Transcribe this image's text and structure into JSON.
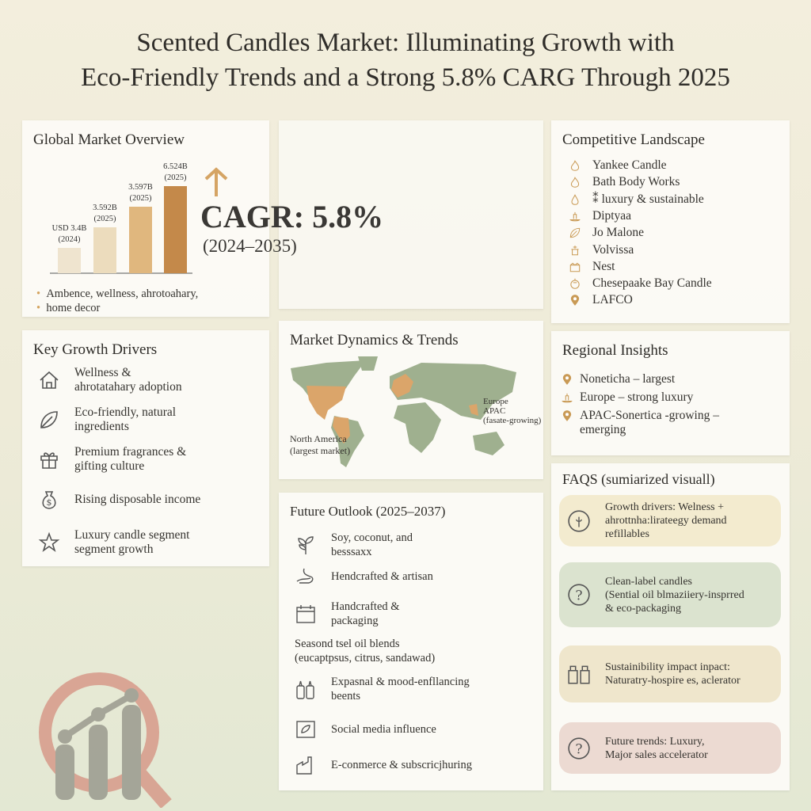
{
  "title_line1": "Scented Candles Market: Illuminating Growth with",
  "title_line2": "Eco-Friendly Trends and a Strong 5.8% CARG Through 2025",
  "overview": {
    "title": "Global Market Overview",
    "bullets": [
      "Ambence, wellness, ahrotoahary,",
      "home decor"
    ],
    "cagr_label": "CAGR: 5.8%",
    "cagr_period": "(2024–2035)",
    "arrow_icon": "arrow-up-icon"
  },
  "chart_data": {
    "type": "bar",
    "categories": [
      "2024",
      "2025",
      "2025",
      "2025"
    ],
    "value_labels": [
      "USD 3.4B",
      "3.592B",
      "3.597B",
      "6.524B"
    ],
    "year_labels": [
      "(2024)",
      "(2025)",
      "(2025)",
      "(2025)"
    ],
    "values": [
      3.4,
      3.592,
      3.597,
      6.524
    ],
    "colors": [
      "#efe4cf",
      "#ecdcbd",
      "#e0b77e",
      "#c4894a"
    ],
    "title": "",
    "xlabel": "",
    "ylabel": ""
  },
  "drivers": {
    "title": "Key Growth Drivers",
    "items": [
      {
        "icon": "house-icon",
        "l1": "Wellness &",
        "l2": "ahrotatahary adoption"
      },
      {
        "icon": "leaf-icon",
        "l1": "Eco-friendly, natural",
        "l2": "ingredients"
      },
      {
        "icon": "gift-icon",
        "l1": "Premium fragrances &",
        "l2": "gifting culture"
      },
      {
        "icon": "money-bag-icon",
        "l1": "Rising disposable income",
        "l2": ""
      },
      {
        "icon": "star-icon",
        "l1": "Luxury candle segment",
        "l2": "segment growth"
      }
    ]
  },
  "dynamics": {
    "title": "Market Dynamics & Trends",
    "na_label": "North America",
    "na_sub": "(largest market)",
    "ap1": "Europe",
    "ap2": "APAC",
    "ap3": "(fasate-growing)",
    "land_color": "#9fb08f",
    "highlight_color": "#dba56a"
  },
  "outlook": {
    "title": "Future Outlook (2025–2037)",
    "items": [
      {
        "icon": "sprout-icon",
        "l1": "Soy, coconut, and",
        "l2": "besssaxx"
      },
      {
        "icon": "hand-icon",
        "l1": "Hendcrafted & artisan",
        "l2": ""
      },
      {
        "icon": "calendar-icon",
        "l1": "Handcrafted &",
        "l2": "packaging"
      },
      {
        "icon": "",
        "l1": "Seasond tsel oil blends",
        "l2": "(eucaptpsus, citrus, sandawad)"
      },
      {
        "icon": "bottles-icon",
        "l1": "Expasnal & mood-enfllancing",
        "l2": "beents"
      },
      {
        "icon": "social-media-icon",
        "l1": "Social media influence",
        "l2": ""
      },
      {
        "icon": "store-icon",
        "l1": "E-conmerce & subscricjhuring",
        "l2": ""
      }
    ]
  },
  "competitive": {
    "title": "Competitive Landscape",
    "items": [
      {
        "icon": "flame-icon",
        "label": "Yankee Candle"
      },
      {
        "icon": "flame-icon",
        "label": "Bath Body Works"
      },
      {
        "icon": "drop-icon",
        "label": "⁑ luxury & sustainable"
      },
      {
        "icon": "candle-icon",
        "label": "Diptyaa"
      },
      {
        "icon": "leaf-icon",
        "label": "Jo Malone"
      },
      {
        "icon": "jar-icon",
        "label": "Volvissa"
      },
      {
        "icon": "bowl-icon",
        "label": "Nest"
      },
      {
        "icon": "apple-icon",
        "label": "Chesepaake Bay Candle"
      },
      {
        "icon": "pin-icon",
        "label": "LAFCO"
      }
    ]
  },
  "regional": {
    "title": "Regional Insights",
    "items": [
      {
        "icon": "pin-icon",
        "l1": "Noneticha – largest",
        "l2": ""
      },
      {
        "icon": "candle-icon",
        "l1": "Europe – strong luxury",
        "l2": ""
      },
      {
        "icon": "pin-icon",
        "l1": "APAC-Sonertica -growing –",
        "l2": "emerging"
      }
    ]
  },
  "faqs": {
    "title": "FAQS (sumiarized visuall)",
    "items": [
      {
        "icon": "leaf-circle-icon",
        "lines": [
          "Growth drivers: Welness +",
          "ahrottnha:lirateegy demand",
          "refillables"
        ],
        "bg": "#f3ebcf"
      },
      {
        "icon": "question-icon",
        "lines": [
          "Clean-label candles",
          "(Sential oil blmaziiery-insprred",
          "& eco-packaging"
        ],
        "bg": "#dbe3cf"
      },
      {
        "icon": "jars-icon",
        "lines": [
          "Sustainibility impact inpact:",
          "Naturatry-hospire es, aclerator"
        ],
        "bg": "#efe6cc"
      },
      {
        "icon": "question-icon",
        "lines": [
          "Future trends: Luxury,",
          "Major sales accelerator"
        ],
        "bg": "#ecdad2"
      }
    ]
  }
}
